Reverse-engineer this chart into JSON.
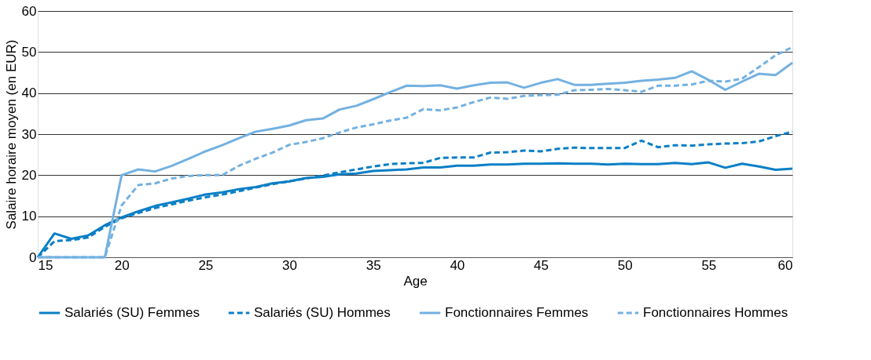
{
  "chart_data": {
    "type": "line",
    "xlabel": "Age",
    "ylabel": "Salaire horaire moyen (en EUR)",
    "x": [
      15,
      16,
      17,
      18,
      19,
      20,
      21,
      22,
      23,
      24,
      25,
      26,
      27,
      28,
      29,
      30,
      31,
      32,
      33,
      34,
      35,
      36,
      37,
      38,
      39,
      40,
      41,
      42,
      43,
      44,
      45,
      46,
      47,
      48,
      49,
      50,
      51,
      52,
      53,
      54,
      55,
      56,
      57,
      58,
      59,
      60
    ],
    "xlim": [
      15,
      60
    ],
    "xticks": [
      15,
      20,
      25,
      30,
      35,
      40,
      45,
      50,
      55,
      60
    ],
    "ylim": [
      0,
      60
    ],
    "yticks": [
      0,
      10,
      20,
      30,
      40,
      50,
      60
    ],
    "grid": "y",
    "legend": "bottom",
    "marker": "none",
    "series": [
      {
        "name": "Salariés (SU) Femmes",
        "color": "#0a7fc6",
        "line_style": "solid",
        "values": [
          0,
          5.8,
          4.5,
          5.3,
          7.8,
          9.7,
          11.2,
          12.5,
          13.4,
          14.3,
          15.3,
          15.8,
          16.6,
          17.1,
          18.0,
          18.5,
          19.3,
          19.6,
          20.2,
          20.4,
          21.0,
          21.2,
          21.4,
          21.9,
          21.9,
          22.3,
          22.3,
          22.6,
          22.6,
          22.8,
          22.8,
          22.9,
          22.8,
          22.8,
          22.6,
          22.8,
          22.7,
          22.7,
          23.0,
          22.7,
          23.1,
          21.8,
          22.8,
          22.1,
          21.3,
          21.6
        ]
      },
      {
        "name": "Salariés (SU) Hommes",
        "color": "#0a7fc6",
        "line_style": "dashed",
        "values": [
          0,
          3.9,
          4.2,
          4.8,
          7.4,
          9.5,
          10.8,
          12.0,
          12.9,
          13.8,
          14.6,
          15.3,
          16.1,
          17.0,
          17.8,
          18.5,
          19.2,
          19.9,
          20.7,
          21.4,
          22.1,
          22.7,
          22.9,
          23.0,
          24.2,
          24.3,
          24.3,
          25.5,
          25.6,
          26.0,
          25.8,
          26.4,
          26.7,
          26.6,
          26.6,
          26.6,
          28.4,
          26.8,
          27.3,
          27.2,
          27.5,
          27.7,
          27.8,
          28.2,
          29.5,
          30.6
        ]
      },
      {
        "name": "Fonctionnaires Femmes",
        "color": "#73b1e1",
        "line_style": "solid",
        "values": [
          0,
          0,
          0,
          0,
          0,
          20.0,
          21.4,
          20.9,
          22.3,
          24.0,
          25.8,
          27.3,
          29.0,
          30.6,
          31.3,
          32.1,
          33.4,
          33.8,
          36.0,
          36.9,
          38.5,
          40.2,
          41.8,
          41.7,
          41.9,
          41.1,
          41.9,
          42.5,
          42.6,
          41.3,
          42.5,
          43.4,
          42.0,
          42.0,
          42.3,
          42.5,
          43.0,
          43.3,
          43.7,
          45.3,
          43.2,
          40.8,
          42.8,
          44.7,
          44.4,
          47.4
        ]
      },
      {
        "name": "Fonctionnaires Hommes",
        "color": "#73b1e1",
        "line_style": "dashed",
        "values": [
          0,
          0,
          0,
          0,
          0,
          12.6,
          17.6,
          18.0,
          19.2,
          19.8,
          20.0,
          20.0,
          22.3,
          24.0,
          25.5,
          27.4,
          28.1,
          29.0,
          30.4,
          31.6,
          32.4,
          33.3,
          34.0,
          36.1,
          35.8,
          36.5,
          37.8,
          38.9,
          38.6,
          39.3,
          39.5,
          39.6,
          40.7,
          40.8,
          41.0,
          40.7,
          40.3,
          41.8,
          41.8,
          42.1,
          43.0,
          42.8,
          43.5,
          46.3,
          49.2,
          51.2
        ]
      }
    ]
  }
}
